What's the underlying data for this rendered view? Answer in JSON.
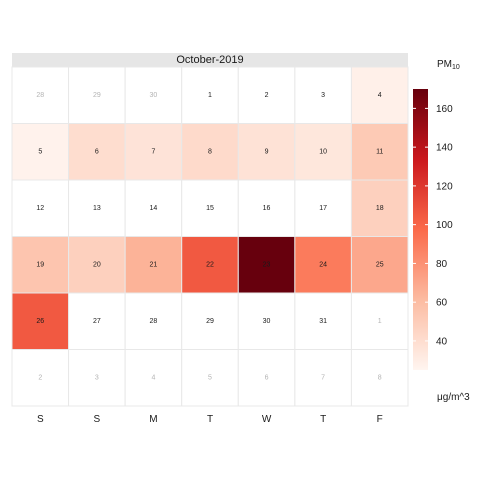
{
  "chart_data": {
    "type": "heatmap",
    "title": "October-2019",
    "legend_title_main": "PM",
    "legend_title_sub": "10",
    "unit_label": "μg/m^3",
    "colorbar_range": [
      25,
      170
    ],
    "colorbar_ticks": [
      "40",
      "60",
      "80",
      "100",
      "120",
      "140",
      "160"
    ],
    "colorbar_tick_values": [
      40,
      60,
      80,
      100,
      120,
      140,
      160
    ],
    "weekdays": [
      "S",
      "S",
      "M",
      "T",
      "W",
      "T",
      "F"
    ],
    "cells": [
      {
        "label": "28",
        "in_month": false,
        "value": null
      },
      {
        "label": "29",
        "in_month": false,
        "value": null
      },
      {
        "label": "30",
        "in_month": false,
        "value": null
      },
      {
        "label": "1",
        "in_month": true,
        "value": null
      },
      {
        "label": "2",
        "in_month": true,
        "value": null
      },
      {
        "label": "3",
        "in_month": true,
        "value": null
      },
      {
        "label": "4",
        "in_month": true,
        "value": 28
      },
      {
        "label": "5",
        "in_month": true,
        "value": 27
      },
      {
        "label": "6",
        "in_month": true,
        "value": 40
      },
      {
        "label": "7",
        "in_month": true,
        "value": 36
      },
      {
        "label": "8",
        "in_month": true,
        "value": 42
      },
      {
        "label": "9",
        "in_month": true,
        "value": 37
      },
      {
        "label": "10",
        "in_month": true,
        "value": 34
      },
      {
        "label": "11",
        "in_month": true,
        "value": 52
      },
      {
        "label": "12",
        "in_month": true,
        "value": null
      },
      {
        "label": "13",
        "in_month": true,
        "value": null
      },
      {
        "label": "14",
        "in_month": true,
        "value": null
      },
      {
        "label": "15",
        "in_month": true,
        "value": null
      },
      {
        "label": "16",
        "in_month": true,
        "value": null
      },
      {
        "label": "17",
        "in_month": true,
        "value": null
      },
      {
        "label": "18",
        "in_month": true,
        "value": 48
      },
      {
        "label": "19",
        "in_month": true,
        "value": 55
      },
      {
        "label": "20",
        "in_month": true,
        "value": 48
      },
      {
        "label": "21",
        "in_month": true,
        "value": 65
      },
      {
        "label": "22",
        "in_month": true,
        "value": 105
      },
      {
        "label": "23",
        "in_month": true,
        "value": 170
      },
      {
        "label": "24",
        "in_month": true,
        "value": 90
      },
      {
        "label": "25",
        "in_month": true,
        "value": 70
      },
      {
        "label": "26",
        "in_month": true,
        "value": 105
      },
      {
        "label": "27",
        "in_month": true,
        "value": null
      },
      {
        "label": "28",
        "in_month": true,
        "value": null
      },
      {
        "label": "29",
        "in_month": true,
        "value": null
      },
      {
        "label": "30",
        "in_month": true,
        "value": null
      },
      {
        "label": "31",
        "in_month": true,
        "value": null
      },
      {
        "label": "1",
        "in_month": false,
        "value": null
      },
      {
        "label": "2",
        "in_month": false,
        "value": null
      },
      {
        "label": "3",
        "in_month": false,
        "value": null
      },
      {
        "label": "4",
        "in_month": false,
        "value": null
      },
      {
        "label": "5",
        "in_month": false,
        "value": null
      },
      {
        "label": "6",
        "in_month": false,
        "value": null
      },
      {
        "label": "7",
        "in_month": false,
        "value": null
      },
      {
        "label": "8",
        "in_month": false,
        "value": null
      }
    ],
    "colors": {
      "scale_low": "#fff5f0",
      "scale_mid1": "#fcbba1",
      "scale_mid2": "#fb6a4a",
      "scale_mid3": "#cb181d",
      "scale_high": "#67000d",
      "strip": "#e6e6e6",
      "cell_border": "#e8e8e8",
      "in_month_text": "#1a1a1a",
      "out_month_text": "#b3b3b3"
    }
  }
}
